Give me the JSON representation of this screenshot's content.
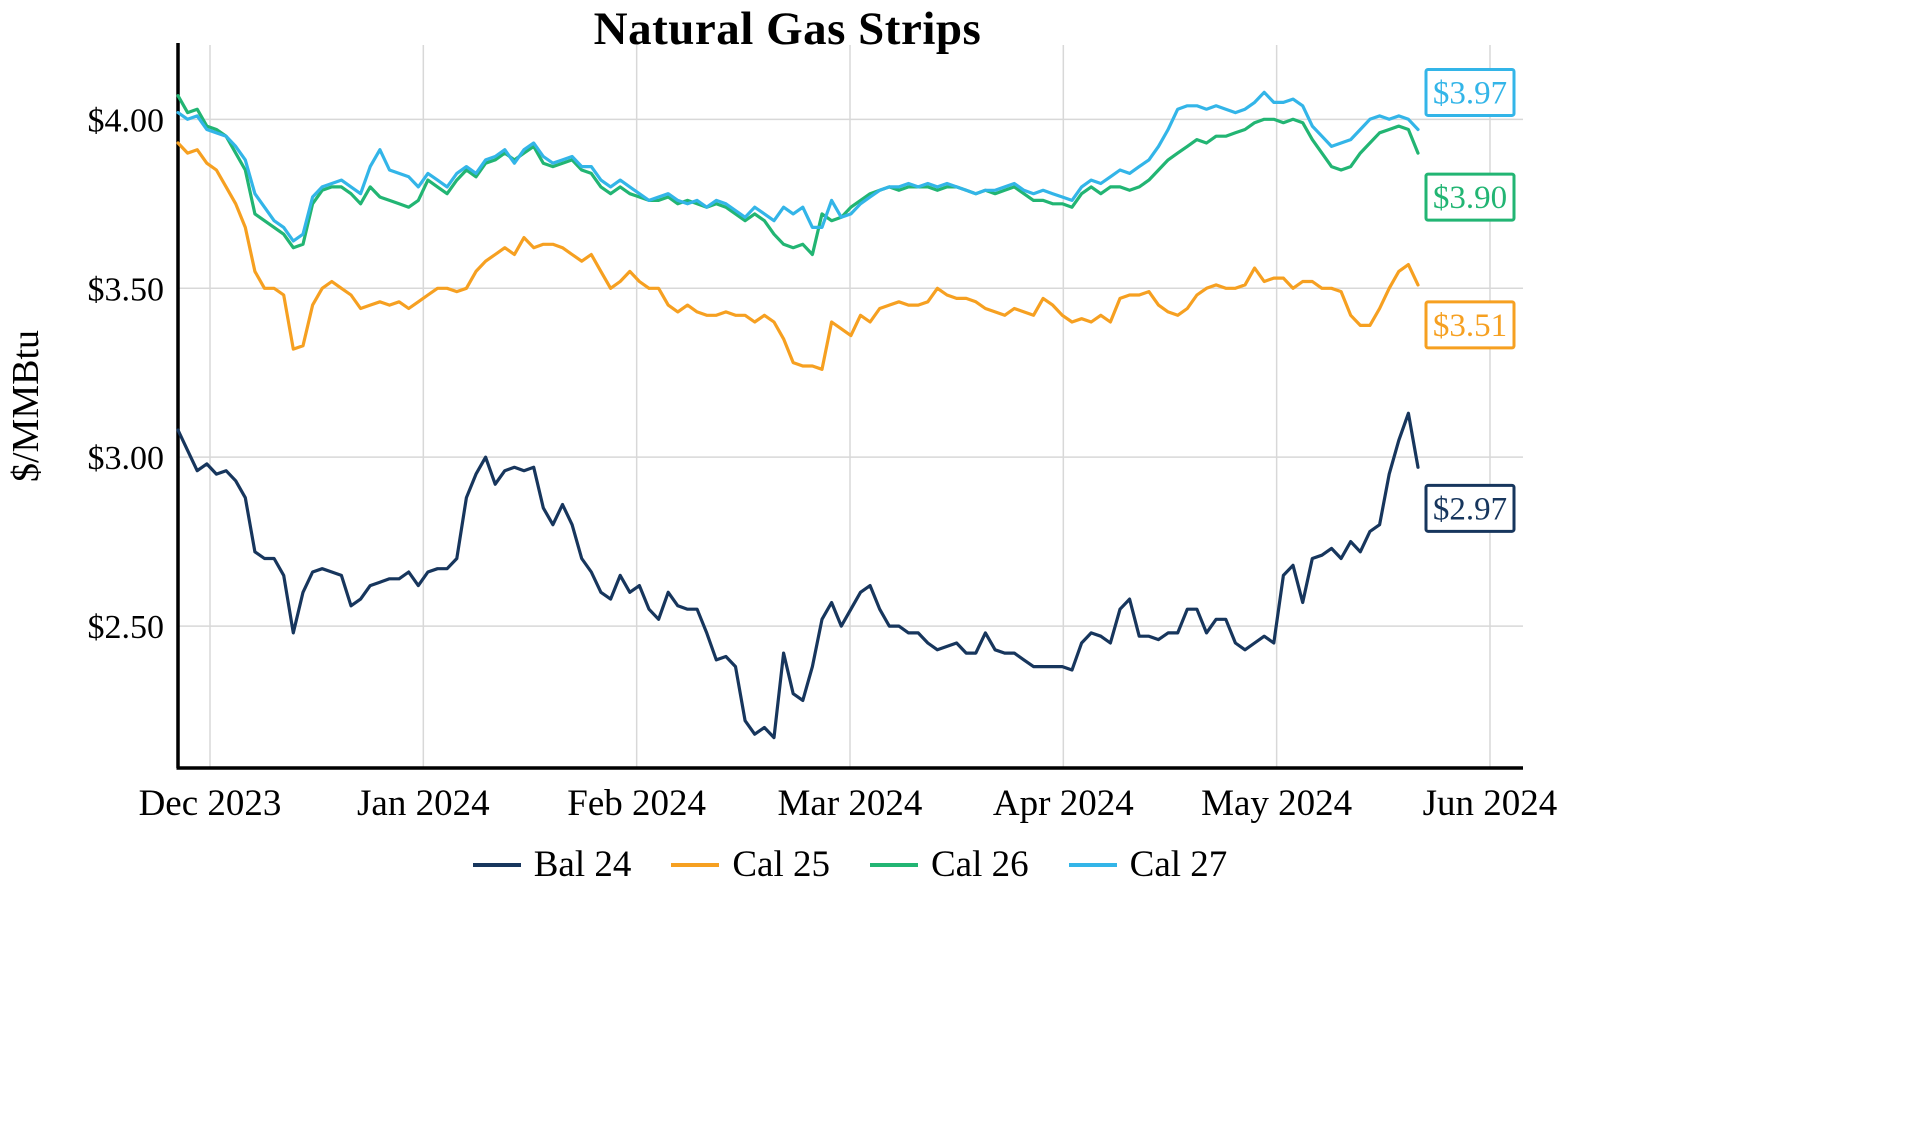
{
  "chart_data": {
    "type": "line",
    "title": "Natural Gas Strips",
    "ylabel": "$/MMBtu",
    "xlabel": "",
    "grid": true,
    "legend_position": "bottom",
    "ylim": [
      2.08,
      4.22
    ],
    "x_tick_labels": [
      "Dec 2023",
      "Jan 2024",
      "Feb 2024",
      "Mar 2024",
      "Apr 2024",
      "May 2024",
      "Jun 2024"
    ],
    "y_ticks": [
      4.0,
      3.5,
      3.0,
      2.5
    ],
    "y_tick_labels": [
      "$4.00",
      "$3.50",
      "$3.00",
      "$2.50"
    ],
    "series": [
      {
        "name": "Bal 24",
        "color": "#17365D",
        "end_label": "$2.97",
        "values": [
          3.08,
          3.02,
          2.96,
          2.98,
          2.95,
          2.96,
          2.93,
          2.88,
          2.72,
          2.7,
          2.7,
          2.65,
          2.48,
          2.6,
          2.66,
          2.67,
          2.66,
          2.65,
          2.56,
          2.58,
          2.62,
          2.63,
          2.64,
          2.64,
          2.66,
          2.62,
          2.66,
          2.67,
          2.67,
          2.7,
          2.88,
          2.95,
          3.0,
          2.92,
          2.96,
          2.97,
          2.96,
          2.97,
          2.85,
          2.8,
          2.86,
          2.8,
          2.7,
          2.66,
          2.6,
          2.58,
          2.65,
          2.6,
          2.62,
          2.55,
          2.52,
          2.6,
          2.56,
          2.55,
          2.55,
          2.48,
          2.4,
          2.41,
          2.38,
          2.22,
          2.18,
          2.2,
          2.17,
          2.42,
          2.3,
          2.28,
          2.38,
          2.52,
          2.57,
          2.5,
          2.55,
          2.6,
          2.62,
          2.55,
          2.5,
          2.5,
          2.48,
          2.48,
          2.45,
          2.43,
          2.44,
          2.45,
          2.42,
          2.42,
          2.48,
          2.43,
          2.42,
          2.42,
          2.4,
          2.38,
          2.38,
          2.38,
          2.38,
          2.37,
          2.45,
          2.48,
          2.47,
          2.45,
          2.55,
          2.58,
          2.47,
          2.47,
          2.46,
          2.48,
          2.48,
          2.55,
          2.55,
          2.48,
          2.52,
          2.52,
          2.45,
          2.43,
          2.45,
          2.47,
          2.45,
          2.65,
          2.68,
          2.57,
          2.7,
          2.71,
          2.73,
          2.7,
          2.75,
          2.72,
          2.78,
          2.8,
          2.95,
          3.05,
          3.13,
          2.97
        ]
      },
      {
        "name": "Cal 25",
        "color": "#F6A021",
        "end_label": "$3.51",
        "values": [
          3.93,
          3.9,
          3.91,
          3.87,
          3.85,
          3.8,
          3.75,
          3.68,
          3.55,
          3.5,
          3.5,
          3.48,
          3.32,
          3.33,
          3.45,
          3.5,
          3.52,
          3.5,
          3.48,
          3.44,
          3.45,
          3.46,
          3.45,
          3.46,
          3.44,
          3.46,
          3.48,
          3.5,
          3.5,
          3.49,
          3.5,
          3.55,
          3.58,
          3.6,
          3.62,
          3.6,
          3.65,
          3.62,
          3.63,
          3.63,
          3.62,
          3.6,
          3.58,
          3.6,
          3.55,
          3.5,
          3.52,
          3.55,
          3.52,
          3.5,
          3.5,
          3.45,
          3.43,
          3.45,
          3.43,
          3.42,
          3.42,
          3.43,
          3.42,
          3.42,
          3.4,
          3.42,
          3.4,
          3.35,
          3.28,
          3.27,
          3.27,
          3.26,
          3.4,
          3.38,
          3.36,
          3.42,
          3.4,
          3.44,
          3.45,
          3.46,
          3.45,
          3.45,
          3.46,
          3.5,
          3.48,
          3.47,
          3.47,
          3.46,
          3.44,
          3.43,
          3.42,
          3.44,
          3.43,
          3.42,
          3.47,
          3.45,
          3.42,
          3.4,
          3.41,
          3.4,
          3.42,
          3.4,
          3.47,
          3.48,
          3.48,
          3.49,
          3.45,
          3.43,
          3.42,
          3.44,
          3.48,
          3.5,
          3.51,
          3.5,
          3.5,
          3.51,
          3.56,
          3.52,
          3.53,
          3.53,
          3.5,
          3.52,
          3.52,
          3.5,
          3.5,
          3.49,
          3.42,
          3.39,
          3.39,
          3.44,
          3.5,
          3.55,
          3.57,
          3.51
        ]
      },
      {
        "name": "Cal 26",
        "color": "#22B573",
        "end_label": "$3.90",
        "values": [
          4.07,
          4.02,
          4.03,
          3.98,
          3.97,
          3.95,
          3.9,
          3.85,
          3.72,
          3.7,
          3.68,
          3.66,
          3.62,
          3.63,
          3.75,
          3.79,
          3.8,
          3.8,
          3.78,
          3.75,
          3.8,
          3.77,
          3.76,
          3.75,
          3.74,
          3.76,
          3.82,
          3.8,
          3.78,
          3.82,
          3.85,
          3.83,
          3.87,
          3.88,
          3.9,
          3.88,
          3.9,
          3.92,
          3.87,
          3.86,
          3.87,
          3.88,
          3.85,
          3.84,
          3.8,
          3.78,
          3.8,
          3.78,
          3.77,
          3.76,
          3.76,
          3.77,
          3.75,
          3.76,
          3.75,
          3.74,
          3.75,
          3.74,
          3.72,
          3.7,
          3.72,
          3.7,
          3.66,
          3.63,
          3.62,
          3.63,
          3.6,
          3.72,
          3.7,
          3.71,
          3.74,
          3.76,
          3.78,
          3.79,
          3.8,
          3.79,
          3.8,
          3.8,
          3.8,
          3.79,
          3.8,
          3.8,
          3.79,
          3.78,
          3.79,
          3.78,
          3.79,
          3.8,
          3.78,
          3.76,
          3.76,
          3.75,
          3.75,
          3.74,
          3.78,
          3.8,
          3.78,
          3.8,
          3.8,
          3.79,
          3.8,
          3.82,
          3.85,
          3.88,
          3.9,
          3.92,
          3.94,
          3.93,
          3.95,
          3.95,
          3.96,
          3.97,
          3.99,
          4.0,
          4.0,
          3.99,
          4.0,
          3.99,
          3.94,
          3.9,
          3.86,
          3.85,
          3.86,
          3.9,
          3.93,
          3.96,
          3.97,
          3.98,
          3.97,
          3.9
        ]
      },
      {
        "name": "Cal 27",
        "color": "#33B5E8",
        "end_label": "$3.97",
        "values": [
          4.02,
          4.0,
          4.01,
          3.97,
          3.96,
          3.95,
          3.92,
          3.88,
          3.78,
          3.74,
          3.7,
          3.68,
          3.64,
          3.66,
          3.77,
          3.8,
          3.81,
          3.82,
          3.8,
          3.78,
          3.86,
          3.91,
          3.85,
          3.84,
          3.83,
          3.8,
          3.84,
          3.82,
          3.8,
          3.84,
          3.86,
          3.84,
          3.88,
          3.89,
          3.91,
          3.87,
          3.91,
          3.93,
          3.89,
          3.87,
          3.88,
          3.89,
          3.86,
          3.86,
          3.82,
          3.8,
          3.82,
          3.8,
          3.78,
          3.76,
          3.77,
          3.78,
          3.76,
          3.75,
          3.76,
          3.74,
          3.76,
          3.75,
          3.73,
          3.71,
          3.74,
          3.72,
          3.7,
          3.74,
          3.72,
          3.74,
          3.68,
          3.68,
          3.76,
          3.71,
          3.72,
          3.75,
          3.77,
          3.79,
          3.8,
          3.8,
          3.81,
          3.8,
          3.81,
          3.8,
          3.81,
          3.8,
          3.79,
          3.78,
          3.79,
          3.79,
          3.8,
          3.81,
          3.79,
          3.78,
          3.79,
          3.78,
          3.77,
          3.76,
          3.8,
          3.82,
          3.81,
          3.83,
          3.85,
          3.84,
          3.86,
          3.88,
          3.92,
          3.97,
          4.03,
          4.04,
          4.04,
          4.03,
          4.04,
          4.03,
          4.02,
          4.03,
          4.05,
          4.08,
          4.05,
          4.05,
          4.06,
          4.04,
          3.98,
          3.95,
          3.92,
          3.93,
          3.94,
          3.97,
          4.0,
          4.01,
          4.0,
          4.01,
          4.0,
          3.97
        ]
      }
    ],
    "colors": {
      "axis": "#000000",
      "gridline": "#D8D8D8",
      "background": "#FFFFFF"
    }
  }
}
